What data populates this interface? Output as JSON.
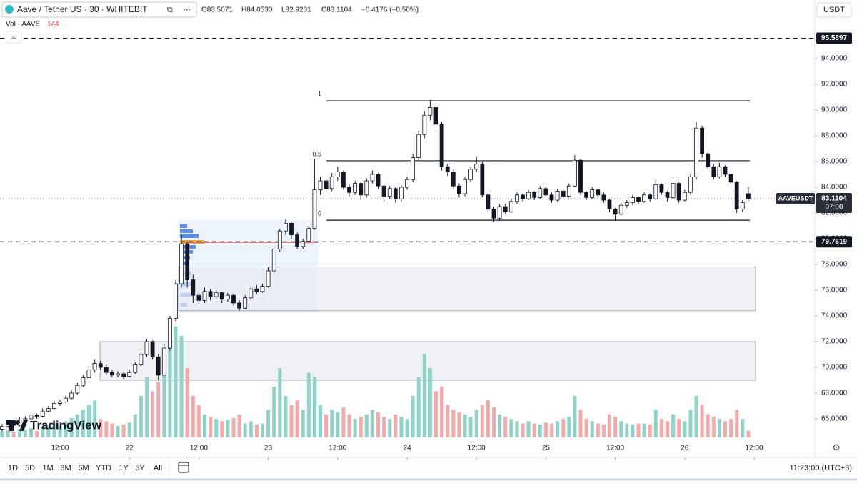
{
  "header": {
    "title": "Aave / Tether US · 30 · WHITEBIT",
    "open": "O83.5071",
    "high": "H84.0530",
    "low": "L82.9231",
    "close": "C83.1104",
    "change": "−0.4176 (−0.50%)",
    "volume_label": "Vol · AAVE",
    "volume_value": 144,
    "currency": "USDT",
    "symbol": "AAVEUSDT",
    "countdown": "07:00",
    "brand": "TradingView"
  },
  "toolbar": {
    "ranges": [
      "1D",
      "5D",
      "1M",
      "3M",
      "6M",
      "YTD",
      "1Y",
      "5Y",
      "All"
    ],
    "clock": "11:23:00 (UTC+3)"
  },
  "chart_data": {
    "type": "candlestick",
    "candles": [
      [
        65.2,
        65.6,
        65.0,
        65.4
      ],
      [
        65.4,
        65.8,
        65.3,
        65.6
      ],
      [
        65.6,
        65.8,
        65.3,
        65.5
      ],
      [
        65.5,
        66.1,
        65.4,
        65.9
      ],
      [
        65.9,
        66.2,
        65.7,
        66.0
      ],
      [
        66.0,
        66.5,
        65.9,
        66.3
      ],
      [
        66.3,
        66.4,
        66.0,
        66.2
      ],
      [
        66.2,
        66.8,
        66.1,
        66.6
      ],
      [
        66.6,
        67.0,
        66.5,
        66.8
      ],
      [
        66.8,
        67.4,
        66.7,
        67.2
      ],
      [
        67.2,
        67.5,
        67.0,
        67.3
      ],
      [
        67.3,
        67.8,
        67.2,
        67.6
      ],
      [
        67.6,
        68.2,
        67.5,
        68.0
      ],
      [
        68.0,
        68.8,
        67.9,
        68.6
      ],
      [
        68.6,
        69.4,
        68.5,
        69.2
      ],
      [
        69.2,
        70.0,
        69.0,
        69.8
      ],
      [
        69.8,
        70.6,
        69.6,
        70.3
      ],
      [
        70.3,
        70.5,
        69.8,
        70.0
      ],
      [
        70.0,
        70.2,
        69.4,
        69.6
      ],
      [
        69.6,
        69.8,
        69.2,
        69.4
      ],
      [
        69.4,
        69.7,
        69.2,
        69.5
      ],
      [
        69.5,
        69.6,
        69.1,
        69.3
      ],
      [
        69.3,
        69.8,
        69.2,
        69.6
      ],
      [
        69.6,
        70.4,
        69.5,
        70.2
      ],
      [
        70.2,
        71.2,
        70.0,
        71.0
      ],
      [
        71.0,
        72.2,
        70.8,
        72.0
      ],
      [
        72.0,
        72.1,
        70.6,
        70.8
      ],
      [
        70.8,
        71.0,
        69.0,
        69.4
      ],
      [
        69.4,
        71.8,
        69.3,
        71.5
      ],
      [
        71.5,
        74.0,
        71.3,
        73.8
      ],
      [
        73.8,
        76.8,
        73.6,
        76.5
      ],
      [
        76.5,
        80.3,
        76.2,
        79.6
      ],
      [
        79.6,
        79.8,
        76.2,
        76.8
      ],
      [
        76.8,
        77.2,
        75.0,
        75.6
      ],
      [
        75.6,
        75.9,
        74.9,
        75.2
      ],
      [
        75.2,
        76.2,
        75.0,
        75.9
      ],
      [
        75.9,
        76.1,
        75.2,
        75.5
      ],
      [
        75.5,
        76.0,
        75.3,
        75.8
      ],
      [
        75.8,
        75.9,
        75.0,
        75.3
      ],
      [
        75.3,
        75.8,
        75.1,
        75.6
      ],
      [
        75.6,
        75.7,
        74.8,
        75.0
      ],
      [
        75.0,
        75.2,
        74.4,
        74.6
      ],
      [
        74.6,
        75.6,
        74.5,
        75.4
      ],
      [
        75.4,
        76.3,
        75.2,
        76.1
      ],
      [
        76.1,
        76.4,
        75.7,
        75.9
      ],
      [
        75.9,
        76.5,
        75.8,
        76.3
      ],
      [
        76.3,
        77.8,
        76.2,
        77.5
      ],
      [
        77.5,
        79.4,
        77.3,
        79.2
      ],
      [
        79.2,
        80.8,
        79.0,
        80.6
      ],
      [
        80.6,
        81.5,
        80.3,
        81.2
      ],
      [
        81.2,
        81.3,
        80.0,
        80.3
      ],
      [
        80.3,
        80.5,
        79.2,
        79.4
      ],
      [
        79.4,
        80.0,
        79.2,
        79.8
      ],
      [
        79.8,
        81.0,
        79.6,
        80.8
      ],
      [
        80.8,
        86.2,
        80.7,
        83.8
      ],
      [
        83.8,
        84.8,
        83.4,
        84.5
      ],
      [
        84.5,
        84.7,
        83.6,
        83.9
      ],
      [
        83.9,
        85.1,
        83.7,
        84.8
      ],
      [
        84.8,
        85.6,
        84.5,
        85.2
      ],
      [
        85.2,
        85.3,
        83.8,
        84.0
      ],
      [
        84.0,
        84.2,
        83.3,
        83.6
      ],
      [
        83.6,
        84.5,
        83.4,
        84.3
      ],
      [
        84.3,
        84.4,
        83.0,
        83.4
      ],
      [
        83.4,
        84.7,
        83.2,
        84.5
      ],
      [
        84.5,
        85.3,
        84.3,
        85.0
      ],
      [
        85.0,
        85.1,
        83.9,
        84.1
      ],
      [
        84.1,
        84.3,
        82.9,
        83.3
      ],
      [
        83.3,
        84.1,
        83.1,
        83.9
      ],
      [
        83.9,
        84.0,
        82.8,
        83.1
      ],
      [
        83.1,
        84.2,
        82.9,
        84.0
      ],
      [
        84.0,
        84.8,
        83.8,
        84.6
      ],
      [
        84.6,
        86.6,
        84.4,
        86.3
      ],
      [
        86.3,
        88.4,
        86.1,
        88.1
      ],
      [
        88.1,
        89.9,
        87.8,
        89.6
      ],
      [
        89.6,
        90.8,
        89.2,
        90.2
      ],
      [
        90.2,
        90.4,
        88.6,
        88.9
      ],
      [
        88.9,
        89.1,
        85.3,
        85.6
      ],
      [
        85.6,
        85.8,
        84.9,
        85.2
      ],
      [
        85.2,
        85.4,
        83.9,
        84.1
      ],
      [
        84.1,
        84.3,
        83.2,
        83.5
      ],
      [
        83.5,
        84.8,
        83.3,
        84.6
      ],
      [
        84.6,
        85.6,
        84.4,
        85.4
      ],
      [
        85.4,
        86.4,
        85.2,
        85.8
      ],
      [
        85.8,
        86.0,
        83.2,
        83.4
      ],
      [
        83.4,
        83.6,
        82.1,
        82.3
      ],
      [
        82.3,
        82.5,
        81.3,
        81.6
      ],
      [
        81.6,
        82.7,
        81.4,
        82.5
      ],
      [
        82.5,
        82.7,
        81.9,
        82.1
      ],
      [
        82.1,
        83.1,
        82.0,
        82.9
      ],
      [
        82.9,
        83.6,
        82.7,
        83.4
      ],
      [
        83.4,
        83.5,
        82.9,
        83.1
      ],
      [
        83.1,
        83.8,
        83.0,
        83.6
      ],
      [
        83.6,
        83.7,
        83.0,
        83.2
      ],
      [
        83.2,
        84.1,
        83.1,
        83.9
      ],
      [
        83.9,
        84.0,
        83.2,
        83.4
      ],
      [
        83.4,
        83.6,
        82.8,
        83.0
      ],
      [
        83.0,
        83.9,
        82.9,
        83.7
      ],
      [
        83.7,
        83.8,
        83.1,
        83.3
      ],
      [
        83.3,
        84.3,
        83.2,
        84.1
      ],
      [
        84.1,
        86.5,
        84.0,
        86.1
      ],
      [
        86.1,
        86.2,
        83.4,
        83.6
      ],
      [
        83.6,
        83.7,
        83.0,
        83.2
      ],
      [
        83.2,
        84.0,
        83.1,
        83.8
      ],
      [
        83.8,
        83.9,
        83.2,
        83.4
      ],
      [
        83.4,
        83.6,
        82.8,
        83.0
      ],
      [
        83.0,
        83.1,
        82.1,
        82.3
      ],
      [
        82.3,
        82.4,
        81.4,
        81.9
      ],
      [
        81.9,
        82.8,
        81.8,
        82.6
      ],
      [
        82.6,
        83.0,
        82.4,
        82.8
      ],
      [
        82.8,
        83.4,
        82.6,
        83.2
      ],
      [
        83.2,
        83.3,
        82.7,
        82.9
      ],
      [
        82.9,
        83.6,
        82.8,
        83.4
      ],
      [
        83.4,
        83.5,
        82.9,
        83.1
      ],
      [
        83.1,
        84.6,
        83.0,
        84.2
      ],
      [
        84.2,
        84.3,
        83.4,
        83.6
      ],
      [
        83.6,
        83.7,
        82.9,
        83.2
      ],
      [
        83.2,
        84.5,
        83.1,
        84.3
      ],
      [
        84.3,
        84.4,
        82.8,
        83.0
      ],
      [
        83.0,
        83.8,
        82.9,
        83.6
      ],
      [
        83.6,
        85.0,
        83.4,
        84.8
      ],
      [
        84.8,
        89.1,
        84.6,
        88.6
      ],
      [
        88.6,
        88.8,
        86.3,
        86.6
      ],
      [
        86.6,
        86.7,
        85.4,
        85.6
      ],
      [
        85.6,
        85.8,
        84.6,
        84.8
      ],
      [
        84.8,
        85.9,
        84.7,
        85.6
      ],
      [
        85.6,
        85.7,
        84.8,
        85.0
      ],
      [
        85.0,
        85.2,
        84.2,
        84.4
      ],
      [
        84.4,
        84.5,
        82.0,
        82.3
      ],
      [
        82.3,
        83.0,
        82.1,
        82.8
      ],
      [
        83.5071,
        84.053,
        82.9231,
        83.1104
      ]
    ],
    "volumes": [
      120,
      150,
      110,
      180,
      160,
      200,
      140,
      220,
      250,
      300,
      260,
      350,
      420,
      500,
      600,
      700,
      800,
      400,
      350,
      300,
      250,
      280,
      320,
      500,
      900,
      1300,
      1000,
      1200,
      1600,
      2000,
      2400,
      2200,
      1500,
      900,
      700,
      500,
      450,
      400,
      350,
      380,
      420,
      500,
      300,
      350,
      280,
      300,
      600,
      1100,
      1500,
      900,
      700,
      800,
      600,
      1400,
      1300,
      700,
      500,
      600,
      550,
      650,
      500,
      400,
      450,
      500,
      600,
      550,
      450,
      400,
      500,
      450,
      400,
      900,
      1300,
      1800,
      1500,
      1000,
      1100,
      700,
      600,
      550,
      500,
      450,
      600,
      700,
      800,
      650,
      500,
      450,
      400,
      350,
      300,
      350,
      300,
      280,
      320,
      300,
      350,
      400,
      450,
      900,
      600,
      400,
      350,
      300,
      280,
      500,
      450,
      350,
      300,
      280,
      300,
      300,
      280,
      600,
      400,
      350,
      500,
      400,
      350,
      600,
      900,
      700,
      500,
      450,
      400,
      350,
      400,
      600,
      400,
      144
    ],
    "up_color": "#ffffff",
    "down_color": "#131722",
    "volume_up_color": "#8fd3c8",
    "volume_down_color": "#f5a9a9",
    "xlim": [
      -0.37,
      140.37
    ],
    "xticks": [
      {
        "value": 10,
        "label": "12:00"
      },
      {
        "value": 22,
        "label": "22"
      },
      {
        "value": 34,
        "label": "12:00"
      },
      {
        "value": 46,
        "label": "23"
      },
      {
        "value": 58,
        "label": "12:00"
      },
      {
        "value": 70,
        "label": "24"
      },
      {
        "value": 82,
        "label": "12:00"
      },
      {
        "value": 94,
        "label": "25"
      },
      {
        "value": 106,
        "label": "12:00"
      },
      {
        "value": 118,
        "label": "26"
      },
      {
        "value": 130,
        "label": "12:00"
      }
    ],
    "ylim": [
      63.22,
      98.56
    ],
    "yticks": [
      {
        "value": 66,
        "label": "66.0000"
      },
      {
        "value": 68,
        "label": "68.0000"
      },
      {
        "value": 70,
        "label": "70.0000"
      },
      {
        "value": 72,
        "label": "72.0000"
      },
      {
        "value": 74,
        "label": "74.0000"
      },
      {
        "value": 76,
        "label": "76.0000"
      },
      {
        "value": 78,
        "label": "78.0000"
      },
      {
        "value": 80,
        "label": "80.0000"
      },
      {
        "value": 82,
        "label": "82.0000"
      },
      {
        "value": 84,
        "label": "84.0000"
      },
      {
        "value": 86,
        "label": "86.0000"
      },
      {
        "value": 88,
        "label": "88.0000"
      },
      {
        "value": 90,
        "label": "90.0000"
      },
      {
        "value": 92,
        "label": "92.0000"
      },
      {
        "value": 94,
        "label": "94.0000"
      }
    ],
    "alert_lines": [
      95.5897,
      79.7619
    ],
    "last_price": 83.1104,
    "fib_levels": [
      {
        "label": "1",
        "value": 90.72
      },
      {
        "label": "0.5",
        "value": 86.06
      },
      {
        "label": "0",
        "value": 81.44
      }
    ],
    "zones": [
      [
        74.4,
        77.8
      ],
      [
        69.0,
        72.0
      ]
    ]
  }
}
